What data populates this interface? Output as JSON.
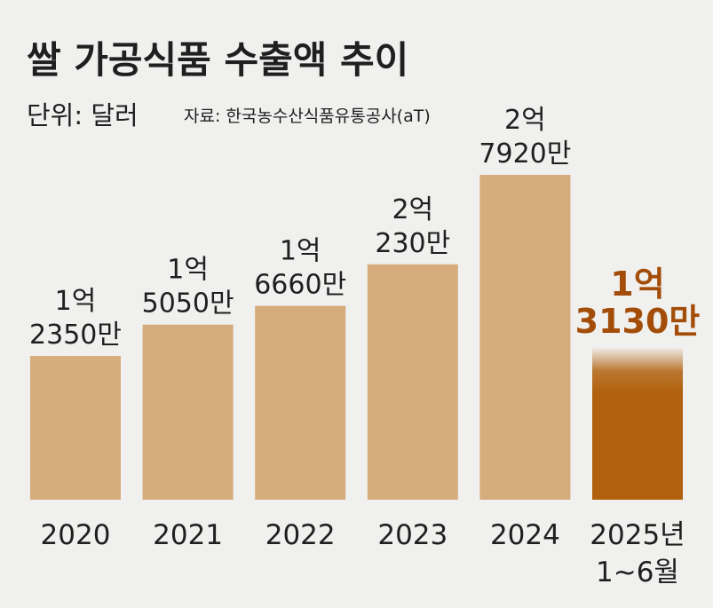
{
  "chart_data": {
    "type": "bar",
    "title": "쌀 가공식품 수출액 추이",
    "unit_label": "단위: 달러",
    "source": "자료: 한국농수산식품유통공사(aT)",
    "categories": [
      [
        "2020"
      ],
      [
        "2021"
      ],
      [
        "2022"
      ],
      [
        "2023"
      ],
      [
        "2024"
      ],
      [
        "2025년",
        "1~6월"
      ]
    ],
    "values": [
      123500000,
      150500000,
      166600000,
      202300000,
      279200000,
      131300000
    ],
    "value_labels": [
      [
        "1억",
        "2350만"
      ],
      [
        "1억",
        "5050만"
      ],
      [
        "1억",
        "6660만"
      ],
      [
        "2억",
        "230만"
      ],
      [
        "2억",
        "7920만"
      ],
      [
        "1억",
        "3130만"
      ]
    ],
    "ylim": [
      0,
      279200000
    ],
    "colors": {
      "bar": "#d6ac7c",
      "highlight_bar": "#b1610e",
      "highlight_label": "#a34d08",
      "text": "#1f1f1f"
    },
    "highlight_index": 5
  }
}
